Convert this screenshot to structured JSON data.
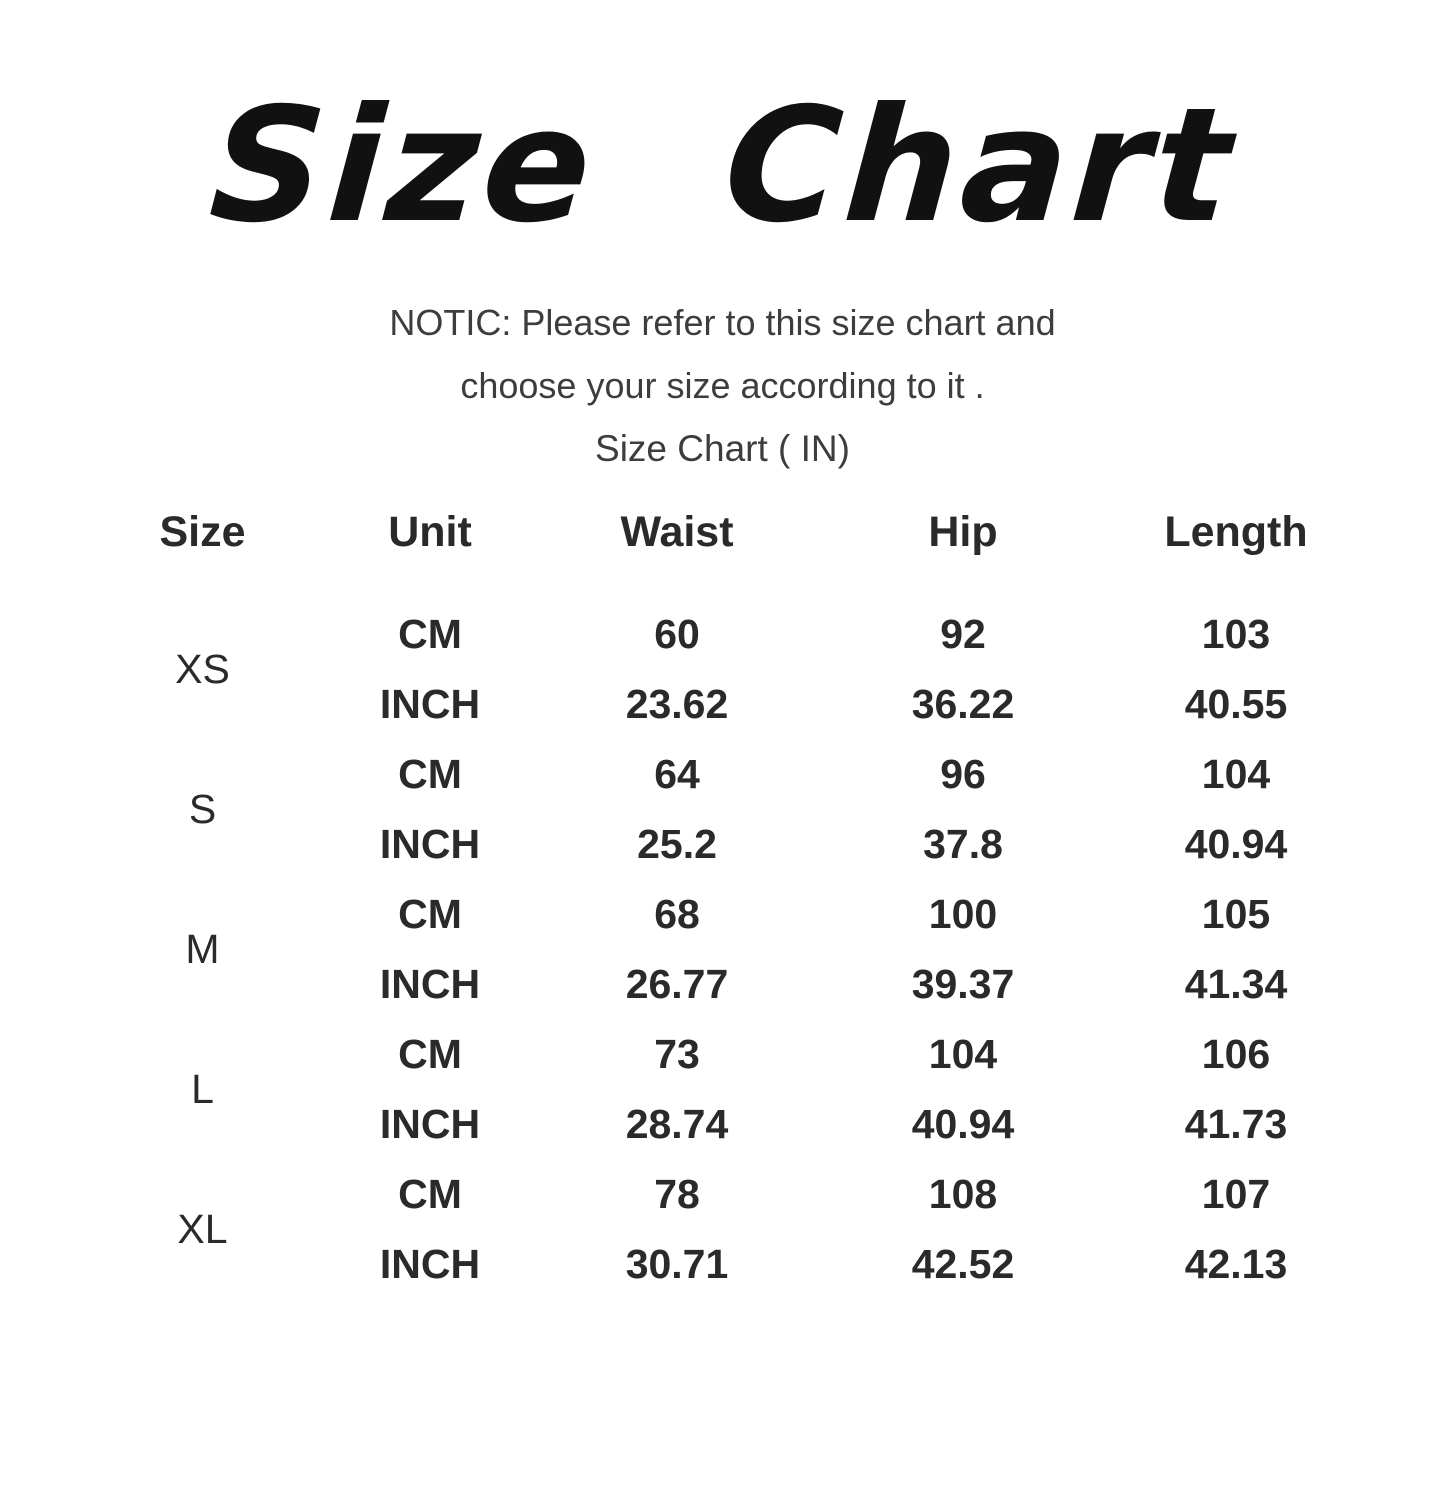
{
  "title": "Size Chart",
  "notice": {
    "line1": "NOTIC: Please refer to this size chart and",
    "line2": "choose your size according to it .",
    "line3": "Size Chart ( IN)"
  },
  "table": {
    "headers": [
      "Size",
      "Unit",
      "Waist",
      "Hip",
      "Length"
    ],
    "rows": [
      {
        "size": "XS",
        "units": [
          {
            "unit": "CM",
            "waist": "60",
            "hip": "92",
            "length": "103"
          },
          {
            "unit": "INCH",
            "waist": "23.62",
            "hip": "36.22",
            "length": "40.55"
          }
        ]
      },
      {
        "size": "S",
        "units": [
          {
            "unit": "CM",
            "waist": "64",
            "hip": "96",
            "length": "104"
          },
          {
            "unit": "INCH",
            "waist": "25.2",
            "hip": "37.8",
            "length": "40.94"
          }
        ]
      },
      {
        "size": "M",
        "units": [
          {
            "unit": "CM",
            "waist": "68",
            "hip": "100",
            "length": "105"
          },
          {
            "unit": "INCH",
            "waist": "26.77",
            "hip": "39.37",
            "length": "41.34"
          }
        ]
      },
      {
        "size": "L",
        "units": [
          {
            "unit": "CM",
            "waist": "73",
            "hip": "104",
            "length": "106"
          },
          {
            "unit": "INCH",
            "waist": "28.74",
            "hip": "40.94",
            "length": "41.73"
          }
        ]
      },
      {
        "size": "XL",
        "units": [
          {
            "unit": "CM",
            "waist": "78",
            "hip": "108",
            "length": "107"
          },
          {
            "unit": "INCH",
            "waist": "30.71",
            "hip": "42.52",
            "length": "42.13"
          }
        ]
      }
    ]
  },
  "colors": {
    "background": "#ffffff",
    "title_text": "#111111",
    "notice_text": "#3d3d3d",
    "table_text": "#2a2a2a"
  }
}
